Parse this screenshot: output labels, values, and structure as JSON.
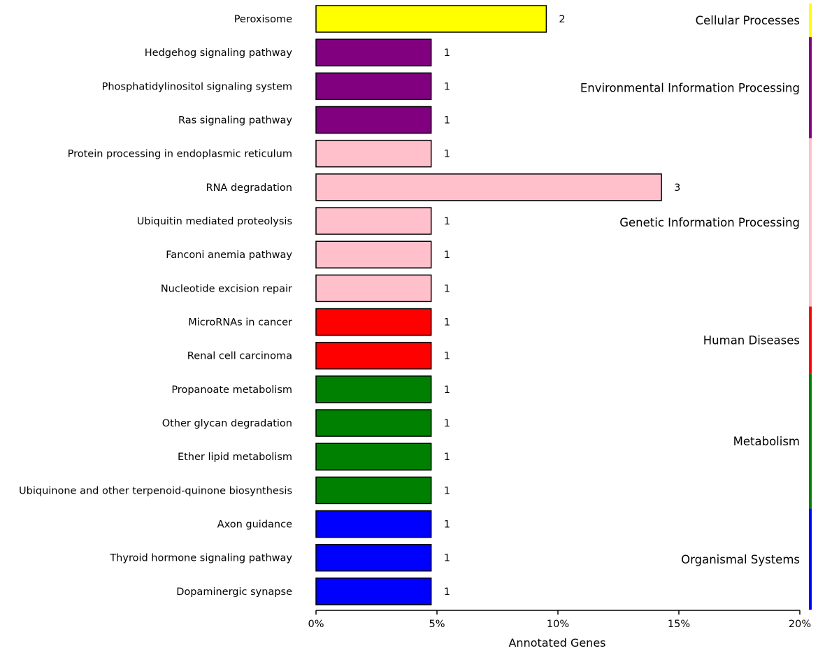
{
  "chart_data": {
    "type": "bar",
    "orientation": "horizontal",
    "xlabel": "Annotated Genes",
    "xlim": [
      0,
      20
    ],
    "xticks": [
      0,
      5,
      10,
      15,
      20
    ],
    "xtick_labels": [
      "0%",
      "5%",
      "10%",
      "15%",
      "20%"
    ],
    "gene_unit_percent": 4.76,
    "categories": [
      "Peroxisome",
      "Hedgehog signaling pathway",
      "Phosphatidylinositol signaling system",
      "Ras signaling pathway",
      "Protein processing in endoplasmic reticulum",
      "RNA degradation",
      "Ubiquitin mediated proteolysis",
      "Fanconi anemia pathway",
      "Nucleotide excision repair",
      "MicroRNAs in cancer",
      "Renal cell carcinoma",
      "Propanoate metabolism",
      "Other glycan degradation",
      "Ether lipid metabolism",
      "Ubiquinone and other terpenoid-quinone biosynthesis",
      "Axon guidance",
      "Thyroid hormone signaling pathway",
      "Dopaminergic synapse"
    ],
    "values": [
      2,
      1,
      1,
      1,
      1,
      3,
      1,
      1,
      1,
      1,
      1,
      1,
      1,
      1,
      1,
      1,
      1,
      1
    ],
    "value_labels": [
      "2",
      "1",
      "1",
      "1",
      "1",
      "3",
      "1",
      "1",
      "1",
      "1",
      "1",
      "1",
      "1",
      "1",
      "1",
      "1",
      "1",
      "1"
    ],
    "groups": [
      {
        "name": "Cellular Processes",
        "color": "#ffff00",
        "start": 0,
        "end": 0
      },
      {
        "name": "Environmental Information Processing",
        "color": "#800080",
        "start": 1,
        "end": 3
      },
      {
        "name": "Genetic Information Processing",
        "color": "#ffc0cb",
        "start": 4,
        "end": 8
      },
      {
        "name": "Human Diseases",
        "color": "#ff0000",
        "start": 9,
        "end": 10
      },
      {
        "name": "Metabolism",
        "color": "#008000",
        "start": 11,
        "end": 14
      },
      {
        "name": "Organismal Systems",
        "color": "#0000ff",
        "start": 15,
        "end": 17
      }
    ]
  }
}
